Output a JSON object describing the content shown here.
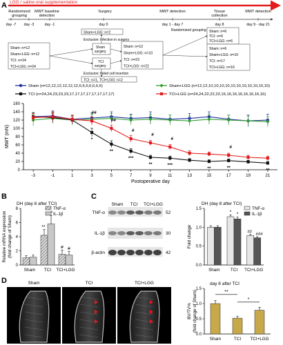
{
  "panelA": {
    "letter": "A",
    "title": "LGG / saline oral supplementation",
    "phases": [
      "Randomized\ngrouping",
      "MWT baseline\ndetection",
      "Surgery",
      "MWT detection",
      "Tissue\ncollection",
      "MWT detection"
    ],
    "days": [
      "day -7",
      "day -3",
      "day -1",
      "day 0",
      "day 1 - day 7",
      "day 8",
      "day 9 - day 21"
    ],
    "boxes": {
      "shamLggTop": "Sham+LGG: n=2",
      "exclusionTop": "Exclusion: infection in surgery",
      "shamSurgery": "Sham\nsurgery",
      "tciSurgery": "TCI\nsurgery",
      "exclusionBottom": "Exclusion: failed cell insertion",
      "tciBottom": "TCI: n=1, TCI+LGG: n=2",
      "randomizedGrouping": "Randomized grouping",
      "leftGroups": [
        "Sham: n=12",
        "Sham+LGG: n=12",
        "TCI: n=24",
        "TCI+LGG: n=24"
      ],
      "midGroups": [
        "Sham: n=12",
        "Sham+LGG: n=10",
        "TCI: n=23",
        "TCI+LGG: n=22"
      ],
      "day8Groups": [
        "Sham: n=6",
        "TCI: n=6",
        "TCI+LGG: n=6"
      ],
      "rightGroups": [
        "Sham: n=6",
        "Sham+LGG: n=10",
        "TCI: n=17",
        "TCI+LGG: n=16"
      ]
    }
  },
  "chart_data": [
    {
      "panel": "A",
      "type": "line",
      "xlabel": "Postoperative day",
      "ylabel": "MWT (mN)",
      "x": [
        -3,
        -1,
        1,
        3,
        5,
        7,
        9,
        11,
        13,
        15,
        17,
        19,
        21
      ],
      "ylim": [
        0,
        160
      ],
      "yticks": [
        0,
        20,
        40,
        60,
        80,
        100,
        120,
        140,
        160
      ],
      "legend": [
        "Sham (n=12,12,12,12,12,12,6,6,6,6,6,6,6)",
        "Sham+LGG (n=12,12,10,10,10,10,10,10,10,10,10,10,10)",
        "TCI (n=24,24,23,23,23,17,17,17,17,17,17,17,17)",
        "TCI+LGG (n=24,24,22,22,22,16,16,16,16,16,16,16,16)"
      ],
      "series": [
        {
          "name": "Sham",
          "color": "#1f2d9e",
          "marker": "circle",
          "values": [
            128,
            130,
            122,
            125,
            128,
            124,
            126,
            122,
            124,
            128,
            122,
            118,
            120
          ],
          "err": [
            10,
            12,
            10,
            12,
            12,
            10,
            14,
            10,
            12,
            12,
            10,
            14,
            14
          ]
        },
        {
          "name": "Sham+LGG",
          "color": "#2e9e2e",
          "marker": "diamond",
          "values": [
            120,
            124,
            120,
            122,
            124,
            120,
            122,
            120,
            118,
            122,
            120,
            118,
            116
          ],
          "err": [
            14,
            12,
            12,
            12,
            12,
            12,
            12,
            12,
            12,
            12,
            12,
            12,
            12
          ]
        },
        {
          "name": "TCI",
          "color": "#111111",
          "marker": "square",
          "values": [
            128,
            126,
            120,
            90,
            62,
            45,
            30,
            28,
            23,
            20,
            22,
            19,
            16
          ],
          "err": [
            10,
            12,
            10,
            10,
            8,
            6,
            5,
            5,
            4,
            4,
            4,
            4,
            4
          ]
        },
        {
          "name": "TCI+LGG",
          "color": "#e41a1c",
          "marker": "square",
          "values": [
            126,
            128,
            122,
            118,
            100,
            75,
            65,
            55,
            40,
            38,
            35,
            30,
            28
          ],
          "err": [
            10,
            12,
            10,
            10,
            8,
            8,
            6,
            6,
            6,
            5,
            5,
            5,
            5
          ]
        }
      ],
      "annotations": [
        {
          "x": 3,
          "label": "##"
        },
        {
          "x": 3,
          "label": "*"
        },
        {
          "x": 5,
          "label": "##"
        },
        {
          "x": 5,
          "label": "**"
        },
        {
          "x": 7,
          "label": "#"
        },
        {
          "x": 7,
          "label": "***"
        },
        {
          "x": 9,
          "label": "#"
        },
        {
          "x": 9,
          "label": "**"
        },
        {
          "x": 11,
          "label": "#"
        },
        {
          "x": 11,
          "label": "***"
        },
        {
          "x": 15,
          "label": "**"
        },
        {
          "x": 17,
          "label": "#"
        },
        {
          "x": 17,
          "label": "**"
        },
        {
          "x": 21,
          "label": "**"
        }
      ]
    },
    {
      "panel": "B",
      "type": "bar",
      "title": "DH (day 8 after TCI)",
      "ylabel": "Relative mRNA expression\n(fold change of Sham)",
      "categories": [
        "Sham",
        "TCI",
        "TCI+LGG"
      ],
      "ylim": [
        0,
        8
      ],
      "yticks": [
        0,
        2,
        4,
        6,
        8
      ],
      "series": [
        {
          "name": "TNF-α",
          "values": [
            1.0,
            4.2,
            1.5
          ],
          "err": [
            0.3,
            0.8,
            0.6
          ]
        },
        {
          "name": "IL-1β",
          "values": [
            1.1,
            5.8,
            1.4
          ],
          "err": [
            0.3,
            1.2,
            0.5
          ]
        }
      ],
      "annotations": [
        "**",
        "*",
        "#",
        "#"
      ]
    },
    {
      "panel": "C",
      "type": "bar",
      "title": "DH (day 8 after TCI)",
      "ylabel": "Fold change",
      "categories": [
        "Sham",
        "TCI",
        "TCI+LGG"
      ],
      "ylim": [
        0,
        1.5
      ],
      "yticks": [
        0.0,
        0.5,
        1.0,
        1.5
      ],
      "series": [
        {
          "name": "TNF-α",
          "values": [
            1.0,
            1.28,
            0.78
          ],
          "err": [
            0.04,
            0.05,
            0.03
          ]
        },
        {
          "name": "IL-1β",
          "values": [
            1.0,
            1.22,
            0.72
          ],
          "err": [
            0.04,
            0.05,
            0.03
          ]
        }
      ],
      "annotations": [
        "*",
        "*",
        "##",
        "###"
      ]
    },
    {
      "panel": "D",
      "type": "bar",
      "title": "day 8 after TCI",
      "ylabel": "BV/TV%\n(fold change of Sham)",
      "categories": [
        "Sham",
        "TCI",
        "TCI+LGG"
      ],
      "ylim": [
        0,
        1.5
      ],
      "yticks": [
        0.0,
        0.5,
        1.0,
        1.5
      ],
      "series": [
        {
          "name": "BV/TV%",
          "values": [
            1.0,
            0.52,
            0.78
          ],
          "err": [
            0.1,
            0.06,
            0.1
          ]
        }
      ],
      "annotations": [
        "**",
        "*"
      ]
    }
  ],
  "panelB": {
    "letter": "B"
  },
  "panelC": {
    "letter": "C",
    "blotLabels": [
      "Sham",
      "TCI",
      "TCI+LGG"
    ],
    "bands": [
      "TNF-α",
      "IL-1β",
      "β-actin"
    ],
    "kda": [
      "52",
      "30",
      "42"
    ]
  },
  "panelD": {
    "letter": "D",
    "imageLabels": [
      "Sham",
      "TCI",
      "TCI+LGG"
    ]
  },
  "colors": {
    "timelineArrow": "#e41a1c",
    "sham": "#1f2d9e",
    "shamLgg": "#2e9e2e",
    "tci": "#111111",
    "tciLgg": "#e41a1c",
    "barGray": "#c8c8c8",
    "barDark": "#444444"
  }
}
